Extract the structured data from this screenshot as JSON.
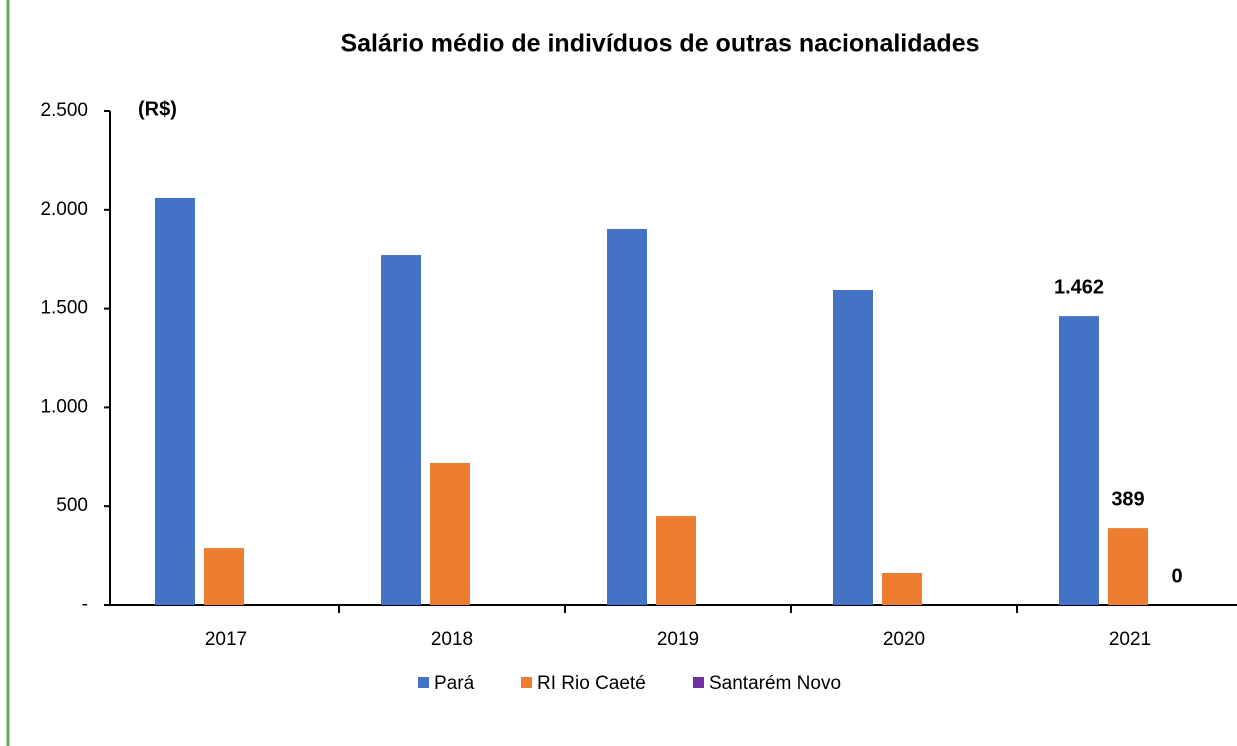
{
  "chart_data": {
    "type": "bar",
    "title": "Salário médio de indivíduos de outras nacionalidades",
    "y_axis_label": "(R$)",
    "categories": [
      "2017",
      "2018",
      "2019",
      "2020",
      "2021"
    ],
    "series": [
      {
        "name": "Pará",
        "color": "#4472c4",
        "values": [
          2060,
          1771,
          1903,
          1594,
          1462
        ],
        "value_labels": [
          null,
          null,
          null,
          null,
          "1.462"
        ]
      },
      {
        "name": "RI Rio Caeté",
        "color": "#ed7d31",
        "values": [
          288,
          719,
          450,
          162,
          389
        ],
        "value_labels": [
          null,
          null,
          null,
          null,
          "389"
        ]
      },
      {
        "name": "Santarém Novo",
        "color": "#7030a0",
        "values": [
          0,
          0,
          0,
          0,
          0
        ],
        "value_labels": [
          null,
          null,
          null,
          null,
          "0"
        ]
      }
    ],
    "ylim": [
      0,
      2500
    ],
    "yticks": [
      {
        "value": 0,
        "label": "-"
      },
      500,
      {
        "value": 1000,
        "label": "1.000"
      },
      {
        "value": 1500,
        "label": "1.500"
      },
      {
        "value": 2000,
        "label": "2.000"
      },
      {
        "value": 2500,
        "label": "2.500"
      }
    ],
    "grid": false,
    "legend": "bottom"
  }
}
